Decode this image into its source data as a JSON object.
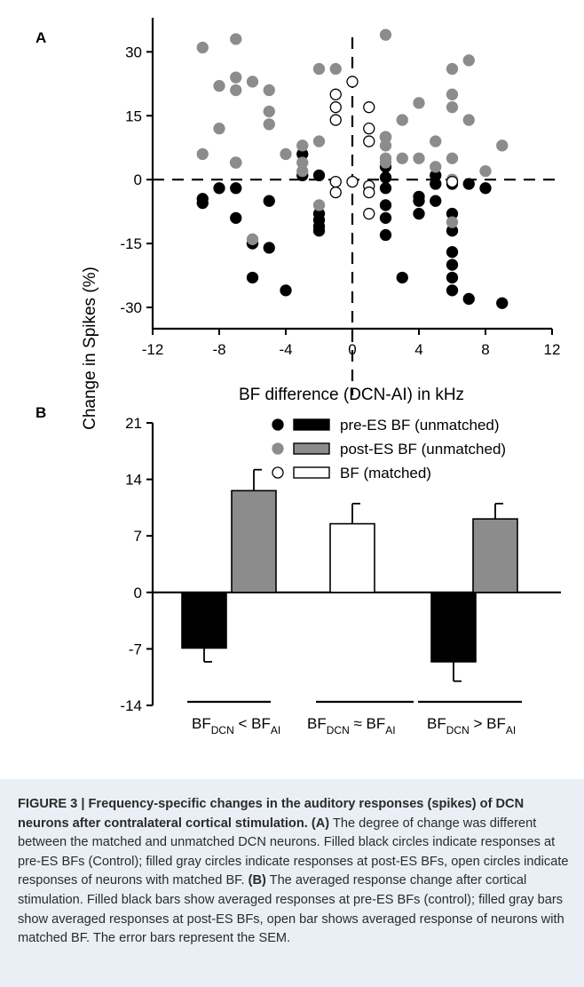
{
  "chart_data": [
    {
      "panel": "A",
      "type": "scatter",
      "xlabel": "BF difference (DCN-AI) in kHz",
      "ylabel": "Change in Spikes (%)",
      "xlim": [
        -12,
        12
      ],
      "ylim": [
        -35,
        38
      ],
      "xticks": [
        -12,
        -8,
        -4,
        0,
        4,
        8,
        12
      ],
      "yticks": [
        30,
        15,
        0,
        -15,
        -30
      ],
      "reference_lines": [
        "x = 0 (dashed)",
        "y = 0 (dashed)"
      ],
      "series": [
        {
          "name": "pre-ES BF (unmatched)",
          "marker": "filled-black-circle",
          "color": "#000000",
          "points": [
            [
              -9,
              -4.5
            ],
            [
              -9,
              -5.5
            ],
            [
              -8,
              -2
            ],
            [
              -7,
              -2
            ],
            [
              -7,
              -9
            ],
            [
              -7,
              4
            ],
            [
              -6,
              -15
            ],
            [
              -6,
              -23
            ],
            [
              -5,
              -5
            ],
            [
              -5,
              -16
            ],
            [
              -4,
              -26
            ],
            [
              -3,
              1
            ],
            [
              -3,
              6
            ],
            [
              -2,
              -8
            ],
            [
              -2,
              -9.5
            ],
            [
              -2,
              -11
            ],
            [
              -2,
              -12
            ],
            [
              -2,
              1
            ],
            [
              2,
              -6
            ],
            [
              2,
              -9
            ],
            [
              2,
              -13
            ],
            [
              2,
              -2
            ],
            [
              2,
              10
            ],
            [
              2,
              3
            ],
            [
              2,
              0.5
            ],
            [
              3,
              -23
            ],
            [
              4,
              -4
            ],
            [
              4,
              -5
            ],
            [
              4,
              -8
            ],
            [
              5,
              -5
            ],
            [
              5,
              -1
            ],
            [
              5,
              1
            ],
            [
              6,
              -12
            ],
            [
              6,
              -17
            ],
            [
              6,
              -20
            ],
            [
              6,
              -23
            ],
            [
              6,
              -26
            ],
            [
              6,
              -8
            ],
            [
              6,
              -1
            ],
            [
              7,
              -28
            ],
            [
              7,
              -1
            ],
            [
              8,
              -2
            ],
            [
              9,
              -29
            ]
          ]
        },
        {
          "name": "post-ES BF (unmatched)",
          "marker": "filled-gray-circle",
          "color": "#8c8c8c",
          "points": [
            [
              -9,
              31
            ],
            [
              -9,
              6
            ],
            [
              -8,
              22
            ],
            [
              -8,
              12
            ],
            [
              -7,
              33
            ],
            [
              -7,
              24
            ],
            [
              -7,
              21
            ],
            [
              -7,
              4
            ],
            [
              -6,
              23
            ],
            [
              -6,
              -14
            ],
            [
              -5,
              21
            ],
            [
              -5,
              16
            ],
            [
              -5,
              13
            ],
            [
              -4,
              6
            ],
            [
              -3,
              8
            ],
            [
              -3,
              4
            ],
            [
              -3,
              2
            ],
            [
              -2,
              26
            ],
            [
              -2,
              9
            ],
            [
              -2,
              -6
            ],
            [
              -1,
              26
            ],
            [
              2,
              34
            ],
            [
              2,
              10
            ],
            [
              2,
              8
            ],
            [
              2,
              5
            ],
            [
              2,
              4
            ],
            [
              3,
              14
            ],
            [
              3,
              5
            ],
            [
              4,
              18
            ],
            [
              4,
              5
            ],
            [
              5,
              9
            ],
            [
              5,
              3
            ],
            [
              6,
              26
            ],
            [
              6,
              20
            ],
            [
              6,
              17
            ],
            [
              6,
              5
            ],
            [
              6,
              0
            ],
            [
              6,
              -10
            ],
            [
              7,
              28
            ],
            [
              7,
              14
            ],
            [
              8,
              2
            ],
            [
              9,
              8
            ]
          ]
        },
        {
          "name": "BF (matched)",
          "marker": "open-circle",
          "color": "#ffffff",
          "points": [
            [
              0,
              23
            ],
            [
              -1,
              20
            ],
            [
              -1,
              17
            ],
            [
              -1,
              14
            ],
            [
              -1,
              -0.5
            ],
            [
              -1,
              -3
            ],
            [
              0,
              -0.5
            ],
            [
              1,
              17
            ],
            [
              1,
              12
            ],
            [
              1,
              9
            ],
            [
              1,
              -1.5
            ],
            [
              1,
              -3
            ],
            [
              1,
              -8
            ],
            [
              6,
              -0.5
            ]
          ]
        }
      ]
    },
    {
      "panel": "B",
      "type": "bar",
      "ylabel": "Change in Spikes (%)",
      "ylim": [
        -14,
        21
      ],
      "yticks": [
        21,
        14,
        7,
        0,
        -7,
        -14
      ],
      "error_bars": "SEM",
      "groups": [
        {
          "base": "BF",
          "sub_a": "DCN",
          "relation": "<",
          "sub_b": "AI"
        },
        {
          "base": "BF",
          "sub_a": "DCN",
          "relation": "≈",
          "sub_b": "AI"
        },
        {
          "base": "BF",
          "sub_a": "DCN",
          "relation": ">",
          "sub_b": "AI"
        }
      ],
      "legend": [
        {
          "label": "pre-ES BF (unmatched)",
          "color": "#000000"
        },
        {
          "label": "post-ES BF (unmatched)",
          "color": "#8c8c8c"
        },
        {
          "label": "BF (matched)",
          "color": "#ffffff"
        }
      ],
      "bars": [
        {
          "group": 0,
          "series": "pre-ES BF (unmatched)",
          "value": -6.9,
          "sem": 1.7,
          "color": "#000000"
        },
        {
          "group": 0,
          "series": "post-ES BF (unmatched)",
          "value": 12.6,
          "sem": 2.6,
          "color": "#8c8c8c"
        },
        {
          "group": 1,
          "series": "BF (matched)",
          "value": 8.5,
          "sem": 2.5,
          "color": "#ffffff"
        },
        {
          "group": 2,
          "series": "pre-ES BF (unmatched)",
          "value": -8.6,
          "sem": 2.4,
          "color": "#000000"
        },
        {
          "group": 2,
          "series": "post-ES BF (unmatched)",
          "value": 9.1,
          "sem": 1.9,
          "color": "#8c8c8c"
        }
      ]
    }
  ],
  "labels": {
    "panel_a": "A",
    "panel_b": "B"
  },
  "caption": {
    "heading": "FIGURE 3 | Frequency-specific changes in the auditory responses (spikes) of DCN neurons after contralateral cortical stimulation",
    "a_label": "(A)",
    "a_text": " The degree of change was different between the matched and unmatched DCN neurons. Filled black circles indicate responses at pre-ES BFs (Control); filled gray circles indicate responses at post-ES BFs, open circles indicate responses of neurons with matched BF. ",
    "b_label": "(B)",
    "b_text": " The averaged response change after cortical stimulation. Filled black bars show averaged responses at pre-ES BFs (control); filled gray bars show averaged responses at post-ES BFs, open bar shows averaged response of neurons with matched BF. The error bars represent the SEM."
  }
}
